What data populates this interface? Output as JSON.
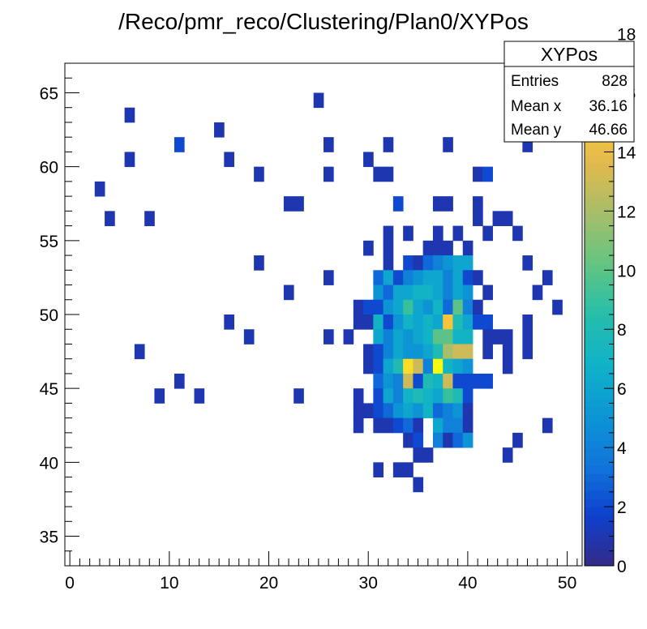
{
  "chart_data": {
    "type": "heatmap",
    "title": "/Reco/pmr_reco/Clustering/Plan0/XYPos",
    "xlabel": "",
    "ylabel": "",
    "xlim": [
      -0.5,
      51.5
    ],
    "ylim": [
      33,
      67
    ],
    "bin_width": 1,
    "x_ticks": [
      0,
      10,
      20,
      30,
      40,
      50
    ],
    "y_ticks": [
      35,
      40,
      45,
      50,
      55,
      60,
      65
    ],
    "colorbar": {
      "min": 0,
      "max": 17,
      "ticks": [
        0,
        2,
        4,
        6,
        8,
        10,
        12,
        14,
        16,
        18
      ],
      "tick_labels": [
        "0",
        "2",
        "4",
        "6",
        "8",
        "10",
        "12",
        "14",
        "16",
        "18"
      ]
    },
    "stats": {
      "name": "XYPos",
      "rows": [
        {
          "label": "Entries",
          "value": "828"
        },
        {
          "label": "Mean x",
          "value": "36.16"
        },
        {
          "label": "Mean y",
          "value": "46.66"
        }
      ]
    },
    "bins": [
      [
        25,
        64,
        1
      ],
      [
        6,
        63,
        1
      ],
      [
        15,
        62,
        1
      ],
      [
        47,
        62,
        1
      ],
      [
        11,
        61,
        2
      ],
      [
        26,
        61,
        1
      ],
      [
        32,
        61,
        1
      ],
      [
        38,
        61,
        1
      ],
      [
        46,
        61,
        1
      ],
      [
        6,
        60,
        1
      ],
      [
        16,
        60,
        1
      ],
      [
        30,
        60,
        1
      ],
      [
        19,
        59,
        1
      ],
      [
        26,
        59,
        1
      ],
      [
        31,
        59,
        1
      ],
      [
        32,
        59,
        1
      ],
      [
        41,
        59,
        1
      ],
      [
        42,
        59,
        2
      ],
      [
        3,
        58,
        1
      ],
      [
        22,
        57,
        1
      ],
      [
        23,
        57,
        1
      ],
      [
        33,
        57,
        2
      ],
      [
        37,
        57,
        1
      ],
      [
        38,
        57,
        1
      ],
      [
        41,
        57,
        1
      ],
      [
        4,
        56,
        1
      ],
      [
        8,
        56,
        1
      ],
      [
        41,
        56,
        1
      ],
      [
        43,
        56,
        1
      ],
      [
        44,
        56,
        1
      ],
      [
        32,
        55,
        1
      ],
      [
        34,
        55,
        1
      ],
      [
        37,
        55,
        1
      ],
      [
        39,
        55,
        1
      ],
      [
        42,
        55,
        1
      ],
      [
        45,
        55,
        1
      ],
      [
        30,
        54,
        1
      ],
      [
        32,
        54,
        1
      ],
      [
        36,
        54,
        1
      ],
      [
        37,
        54,
        1
      ],
      [
        38,
        54,
        1
      ],
      [
        40,
        54,
        1
      ],
      [
        19,
        53,
        1
      ],
      [
        32,
        53,
        1
      ],
      [
        34,
        53,
        2
      ],
      [
        35,
        53,
        1
      ],
      [
        36,
        53,
        3
      ],
      [
        37,
        53,
        4
      ],
      [
        38,
        53,
        5
      ],
      [
        39,
        53,
        6
      ],
      [
        40,
        53,
        6
      ],
      [
        46,
        53,
        1
      ],
      [
        26,
        52,
        1
      ],
      [
        31,
        52,
        3
      ],
      [
        32,
        52,
        6
      ],
      [
        33,
        52,
        2
      ],
      [
        34,
        52,
        4
      ],
      [
        35,
        52,
        5
      ],
      [
        36,
        52,
        6
      ],
      [
        37,
        52,
        6
      ],
      [
        38,
        52,
        4
      ],
      [
        39,
        52,
        6
      ],
      [
        40,
        52,
        2
      ],
      [
        41,
        52,
        1
      ],
      [
        48,
        52,
        1
      ],
      [
        22,
        51,
        1
      ],
      [
        31,
        51,
        5
      ],
      [
        32,
        51,
        3
      ],
      [
        33,
        51,
        6
      ],
      [
        34,
        51,
        6
      ],
      [
        35,
        51,
        7
      ],
      [
        36,
        51,
        7
      ],
      [
        37,
        51,
        6
      ],
      [
        38,
        51,
        4
      ],
      [
        39,
        51,
        6
      ],
      [
        40,
        51,
        5
      ],
      [
        42,
        51,
        1
      ],
      [
        47,
        51,
        1
      ],
      [
        29,
        50,
        1
      ],
      [
        30,
        50,
        2
      ],
      [
        31,
        50,
        2
      ],
      [
        32,
        50,
        5
      ],
      [
        33,
        50,
        6
      ],
      [
        34,
        50,
        9
      ],
      [
        35,
        50,
        6
      ],
      [
        36,
        50,
        5
      ],
      [
        37,
        50,
        7
      ],
      [
        38,
        50,
        3
      ],
      [
        39,
        50,
        10
      ],
      [
        40,
        50,
        4
      ],
      [
        41,
        50,
        1
      ],
      [
        49,
        50,
        1
      ],
      [
        16,
        49,
        1
      ],
      [
        29,
        49,
        1
      ],
      [
        30,
        49,
        1
      ],
      [
        31,
        49,
        7
      ],
      [
        32,
        49,
        2
      ],
      [
        33,
        49,
        5
      ],
      [
        34,
        49,
        7
      ],
      [
        35,
        49,
        6
      ],
      [
        36,
        49,
        7
      ],
      [
        37,
        49,
        6
      ],
      [
        38,
        49,
        15
      ],
      [
        39,
        49,
        8
      ],
      [
        40,
        49,
        6
      ],
      [
        41,
        49,
        2
      ],
      [
        42,
        49,
        2
      ],
      [
        46,
        49,
        1
      ],
      [
        18,
        48,
        1
      ],
      [
        26,
        48,
        1
      ],
      [
        28,
        48,
        1
      ],
      [
        31,
        48,
        6
      ],
      [
        32,
        48,
        4
      ],
      [
        33,
        48,
        6
      ],
      [
        34,
        48,
        5
      ],
      [
        35,
        48,
        6
      ],
      [
        36,
        48,
        7
      ],
      [
        37,
        48,
        10
      ],
      [
        38,
        48,
        10
      ],
      [
        39,
        48,
        7
      ],
      [
        40,
        48,
        7
      ],
      [
        42,
        48,
        1
      ],
      [
        43,
        48,
        1
      ],
      [
        44,
        48,
        1
      ],
      [
        46,
        48,
        1
      ],
      [
        7,
        47,
        1
      ],
      [
        30,
        47,
        1
      ],
      [
        31,
        47,
        2
      ],
      [
        32,
        47,
        4
      ],
      [
        33,
        47,
        6
      ],
      [
        34,
        47,
        5
      ],
      [
        35,
        47,
        5
      ],
      [
        36,
        47,
        6
      ],
      [
        37,
        47,
        8
      ],
      [
        38,
        47,
        12
      ],
      [
        39,
        47,
        13
      ],
      [
        40,
        47,
        13
      ],
      [
        42,
        47,
        1
      ],
      [
        44,
        47,
        1
      ],
      [
        46,
        47,
        1
      ],
      [
        30,
        46,
        1
      ],
      [
        31,
        46,
        2
      ],
      [
        32,
        46,
        6
      ],
      [
        33,
        46,
        8
      ],
      [
        34,
        46,
        16
      ],
      [
        35,
        46,
        13
      ],
      [
        36,
        46,
        4
      ],
      [
        37,
        46,
        18
      ],
      [
        38,
        46,
        7
      ],
      [
        39,
        46,
        6
      ],
      [
        40,
        46,
        5
      ],
      [
        44,
        46,
        1
      ],
      [
        11,
        45,
        1
      ],
      [
        31,
        45,
        3
      ],
      [
        32,
        45,
        5
      ],
      [
        33,
        45,
        4
      ],
      [
        34,
        45,
        13
      ],
      [
        35,
        45,
        2
      ],
      [
        36,
        45,
        8
      ],
      [
        37,
        45,
        7
      ],
      [
        38,
        45,
        13
      ],
      [
        39,
        45,
        2
      ],
      [
        40,
        45,
        2
      ],
      [
        41,
        45,
        2
      ],
      [
        42,
        45,
        2
      ],
      [
        9,
        44,
        1
      ],
      [
        13,
        44,
        1
      ],
      [
        23,
        44,
        1
      ],
      [
        29,
        44,
        1
      ],
      [
        31,
        44,
        2
      ],
      [
        32,
        44,
        6
      ],
      [
        33,
        44,
        4
      ],
      [
        34,
        44,
        7
      ],
      [
        35,
        44,
        8
      ],
      [
        36,
        44,
        7
      ],
      [
        37,
        44,
        6
      ],
      [
        38,
        44,
        9
      ],
      [
        39,
        44,
        8
      ],
      [
        40,
        44,
        2
      ],
      [
        29,
        43,
        1
      ],
      [
        30,
        43,
        1
      ],
      [
        31,
        43,
        2
      ],
      [
        32,
        43,
        3
      ],
      [
        33,
        43,
        5
      ],
      [
        34,
        43,
        6
      ],
      [
        35,
        43,
        5
      ],
      [
        36,
        43,
        7
      ],
      [
        37,
        43,
        3
      ],
      [
        38,
        43,
        4
      ],
      [
        39,
        43,
        5
      ],
      [
        40,
        43,
        1
      ],
      [
        29,
        42,
        1
      ],
      [
        31,
        42,
        1
      ],
      [
        32,
        42,
        1
      ],
      [
        33,
        42,
        2
      ],
      [
        34,
        42,
        3
      ],
      [
        35,
        42,
        1
      ],
      [
        37,
        42,
        6
      ],
      [
        38,
        42,
        4
      ],
      [
        39,
        42,
        4
      ],
      [
        40,
        42,
        1
      ],
      [
        48,
        42,
        1
      ],
      [
        34,
        41,
        1
      ],
      [
        35,
        41,
        2
      ],
      [
        37,
        41,
        4
      ],
      [
        38,
        41,
        1
      ],
      [
        39,
        41,
        3
      ],
      [
        40,
        41,
        5
      ],
      [
        45,
        41,
        1
      ],
      [
        35,
        40,
        1
      ],
      [
        36,
        40,
        1
      ],
      [
        44,
        40,
        1
      ],
      [
        31,
        39,
        1
      ],
      [
        33,
        39,
        1
      ],
      [
        34,
        39,
        1
      ],
      [
        35,
        38,
        1
      ]
    ]
  }
}
